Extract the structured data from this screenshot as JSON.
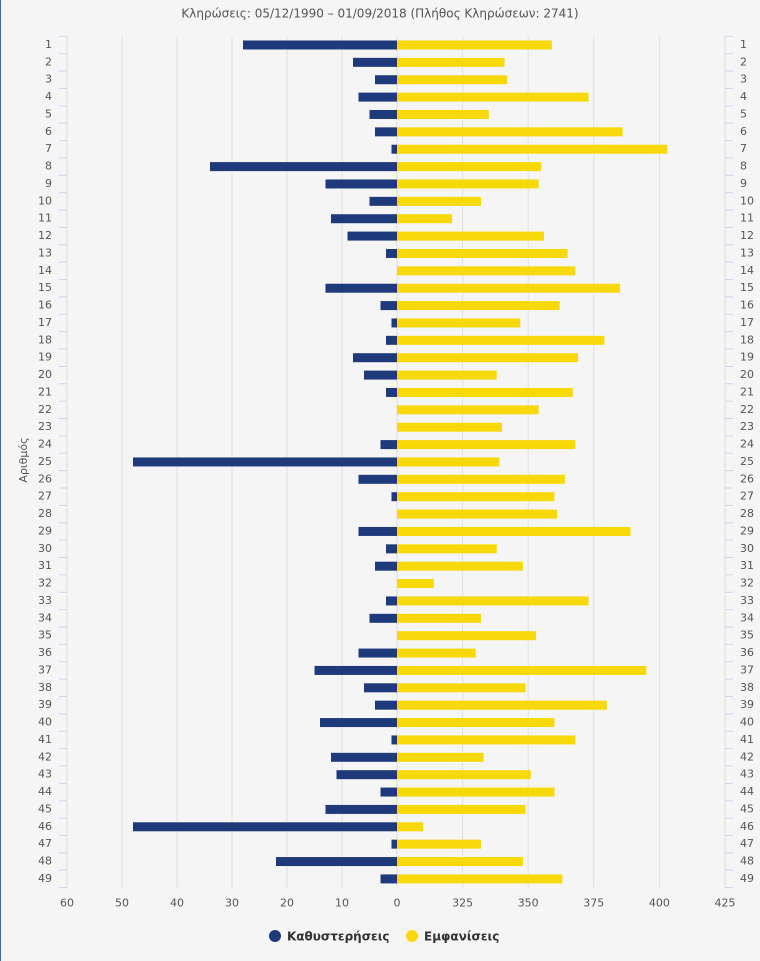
{
  "chart_data": {
    "type": "butterfly-bar",
    "title": "Κληρώσεις: 05/12/1990 – 01/09/2018 (Πλήθος Κληρώσεων: 2741)",
    "y_label": "Αριθμός",
    "categories": [
      "1",
      "2",
      "3",
      "4",
      "5",
      "6",
      "7",
      "8",
      "9",
      "10",
      "11",
      "12",
      "13",
      "14",
      "15",
      "16",
      "17",
      "18",
      "19",
      "20",
      "21",
      "22",
      "23",
      "24",
      "25",
      "26",
      "27",
      "28",
      "29",
      "30",
      "31",
      "32",
      "33",
      "34",
      "35",
      "36",
      "37",
      "38",
      "39",
      "40",
      "41",
      "42",
      "43",
      "44",
      "45",
      "46",
      "47",
      "48",
      "49"
    ],
    "series": [
      {
        "name": "Καθυστερήσεις",
        "color": "#1f3a7a",
        "axis": "x",
        "values": [
          28,
          8,
          4,
          7,
          5,
          4,
          1,
          34,
          13,
          5,
          12,
          9,
          2,
          0,
          13,
          3,
          1,
          2,
          8,
          6,
          2,
          0,
          0,
          3,
          48,
          7,
          1,
          0,
          7,
          2,
          4,
          0,
          2,
          5,
          0,
          7,
          15,
          6,
          4,
          14,
          1,
          12,
          11,
          3,
          13,
          48,
          1,
          22,
          3
        ]
      },
      {
        "name": "Εμφανίσεις",
        "color": "#f7d90a",
        "axis": "x2",
        "values": [
          359,
          341,
          342,
          373,
          335,
          386,
          403,
          355,
          354,
          332,
          321,
          356,
          365,
          368,
          385,
          362,
          347,
          379,
          369,
          338,
          367,
          354,
          340,
          368,
          339,
          364,
          360,
          361,
          389,
          338,
          348,
          314,
          373,
          332,
          353,
          330,
          395,
          349,
          380,
          360,
          368,
          333,
          351,
          360,
          349,
          310,
          332,
          348,
          363
        ]
      }
    ],
    "xlim": [
      60,
      0
    ],
    "xticks": [
      60,
      50,
      40,
      30,
      20,
      10,
      0
    ],
    "x2lim": [
      300,
      425
    ],
    "x2ticks": [
      325,
      350,
      375,
      400,
      425
    ],
    "grid": true
  }
}
